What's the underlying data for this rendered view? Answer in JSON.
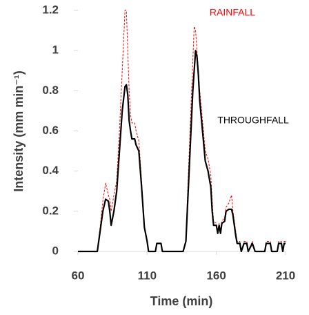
{
  "chart_data": {
    "type": "line",
    "xlabel": "Time (min)",
    "ylabel": "Intensity (mm min⁻¹)",
    "x": [
      60,
      74,
      76,
      78,
      80,
      82,
      83,
      84,
      86,
      88,
      90,
      92,
      94,
      95,
      96,
      97,
      98,
      99,
      101,
      102,
      104,
      106,
      108,
      110,
      111,
      116,
      117,
      120,
      121,
      136,
      138,
      139,
      141,
      143,
      144,
      145,
      146,
      147,
      148,
      150,
      152,
      154,
      156,
      157,
      158,
      160,
      161,
      162,
      163,
      164,
      166,
      167,
      169,
      171,
      172,
      173,
      174,
      175,
      177,
      178,
      180,
      182,
      183,
      186,
      188,
      195,
      196,
      199,
      200,
      204,
      205,
      207,
      208,
      209,
      210
    ],
    "series": [
      {
        "name": "RAINFALL",
        "color": "#ff0000",
        "style": "dashed",
        "values": [
          0,
          0,
          0.12,
          0.25,
          0.34,
          0.28,
          0.26,
          0.2,
          0.28,
          0.35,
          0.6,
          0.9,
          1.2,
          1.2,
          1.0,
          0.8,
          0.68,
          0.64,
          0.64,
          0.6,
          0.55,
          0.35,
          0.12,
          0.05,
          0,
          0,
          0.04,
          0.04,
          0,
          0,
          0.05,
          0.25,
          0.6,
          0.95,
          1.12,
          1.1,
          1.0,
          0.9,
          0.8,
          0.65,
          0.5,
          0.46,
          0.38,
          0.25,
          0.15,
          0.14,
          0.1,
          0.14,
          0.1,
          0.15,
          0.17,
          0.22,
          0.24,
          0.28,
          0.2,
          0.15,
          0.1,
          0.05,
          0.05,
          0,
          0.05,
          0.05,
          0,
          0.05,
          0,
          0,
          0.05,
          0.05,
          0,
          0,
          0.05,
          0.05,
          0,
          0.05,
          0.05
        ]
      },
      {
        "name": "THROUGHFALL",
        "color": "#000000",
        "style": "solid",
        "values": [
          0,
          0,
          0.1,
          0.2,
          0.26,
          0.25,
          0.2,
          0.13,
          0.2,
          0.3,
          0.5,
          0.7,
          0.82,
          0.83,
          0.78,
          0.65,
          0.6,
          0.56,
          0.56,
          0.53,
          0.5,
          0.32,
          0.12,
          0.05,
          0,
          0,
          0.04,
          0.04,
          0,
          0,
          0.05,
          0.2,
          0.5,
          0.8,
          0.9,
          1.0,
          0.97,
          0.88,
          0.75,
          0.6,
          0.45,
          0.4,
          0.32,
          0.2,
          0.13,
          0.13,
          0.09,
          0.13,
          0.09,
          0.14,
          0.15,
          0.2,
          0.21,
          0.21,
          0.18,
          0.13,
          0.08,
          0.04,
          0.04,
          0,
          0.04,
          0.04,
          0,
          0.04,
          0,
          0,
          0.04,
          0.04,
          0,
          0,
          0.04,
          0.04,
          0,
          0.04,
          0.04
        ]
      }
    ],
    "xlim": [
      60,
      210
    ],
    "xticks": [
      60,
      110,
      160,
      210
    ],
    "ylim": [
      0,
      1.2
    ],
    "yticks": [
      0,
      0.2,
      0.4,
      0.6,
      0.8,
      1,
      1.2
    ],
    "grid": false,
    "legend": "inline"
  }
}
